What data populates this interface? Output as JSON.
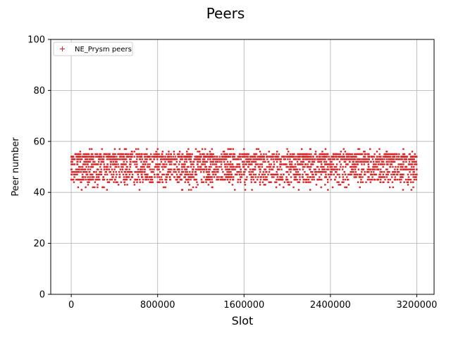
{
  "chart_data": {
    "type": "scatter",
    "title": "Peers",
    "xlabel": "Slot",
    "ylabel": "Peer number",
    "xlim": [
      -190000,
      3360000
    ],
    "ylim": [
      0,
      100
    ],
    "xticks": [
      0,
      800000,
      1600000,
      2400000,
      3200000
    ],
    "xtick_labels": [
      "0",
      "800000",
      "1600000",
      "2400000",
      "3200000"
    ],
    "yticks": [
      0,
      20,
      40,
      60,
      80,
      100
    ],
    "ytick_labels": [
      "0",
      "20",
      "40",
      "60",
      "80",
      "100"
    ],
    "grid": true,
    "legend_position": "top-left",
    "series": [
      {
        "name": "NE_Prysm peers",
        "color": "#d62728",
        "marker": "+",
        "x_range": [
          0,
          3200000
        ],
        "typical_y_range": [
          44,
          55
        ],
        "min_y": 41,
        "max_y": 57,
        "x": [
          0,
          30000,
          60000,
          100000,
          150000,
          200000,
          250000,
          300000,
          350000,
          400000,
          450000,
          500000,
          550000,
          600000,
          650000,
          700000,
          750000,
          800000,
          850000,
          900000,
          950000,
          1000000,
          1050000,
          1100000,
          1150000,
          1200000,
          1250000,
          1300000,
          1350000,
          1400000,
          1450000,
          1500000,
          1550000,
          1600000,
          1650000,
          1700000,
          1750000,
          1800000,
          1850000,
          1900000,
          1950000,
          2000000,
          2050000,
          2100000,
          2150000,
          2200000,
          2250000,
          2300000,
          2350000,
          2400000,
          2450000,
          2500000,
          2550000,
          2600000,
          2650000,
          2700000,
          2750000,
          2800000,
          2850000,
          2900000,
          2950000,
          3000000,
          3050000,
          3100000,
          3150000,
          3200000
        ],
        "y": [
          45,
          48,
          52,
          50,
          47,
          42,
          49,
          53,
          44,
          51,
          46,
          55,
          48,
          50,
          47,
          57,
          52,
          44,
          49,
          53,
          48,
          46,
          51,
          55,
          47,
          50,
          45,
          52,
          49,
          54,
          46,
          50,
          48,
          57,
          52,
          44,
          51,
          49,
          47,
          53,
          45,
          57,
          50,
          48,
          44,
          52,
          49,
          55,
          46,
          51,
          48,
          53,
          42,
          50,
          47,
          44,
          52,
          49,
          46,
          51,
          42,
          48,
          50,
          45,
          41,
          47
        ]
      }
    ]
  }
}
